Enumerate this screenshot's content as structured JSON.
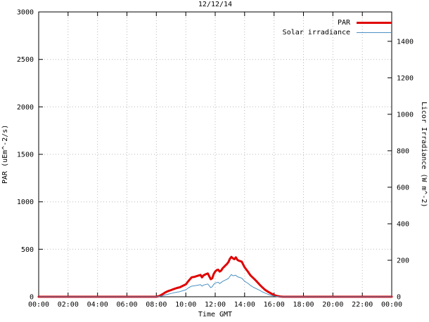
{
  "chart_data": {
    "type": "line",
    "title": "12/12/14",
    "xlabel": "Time GMT",
    "ylabel": "PAR (uEm^-2/s)",
    "y2label": "Licor Irradiance (W m^-2)",
    "xlim": [
      0,
      24
    ],
    "ylim": [
      0,
      3000
    ],
    "y2lim": [
      0,
      1561
    ],
    "grid": true,
    "legend_position": "top-right",
    "xticks": [
      {
        "v": 0,
        "label": "00:00"
      },
      {
        "v": 2,
        "label": "02:00"
      },
      {
        "v": 4,
        "label": "04:00"
      },
      {
        "v": 6,
        "label": "06:00"
      },
      {
        "v": 8,
        "label": "08:00"
      },
      {
        "v": 10,
        "label": "10:00"
      },
      {
        "v": 12,
        "label": "12:00"
      },
      {
        "v": 14,
        "label": "14:00"
      },
      {
        "v": 16,
        "label": "16:00"
      },
      {
        "v": 18,
        "label": "18:00"
      },
      {
        "v": 20,
        "label": "20:00"
      },
      {
        "v": 22,
        "label": "22:00"
      },
      {
        "v": 24,
        "label": "00:00"
      }
    ],
    "yticks": [
      {
        "v": 0,
        "label": "0"
      },
      {
        "v": 500,
        "label": "500"
      },
      {
        "v": 1000,
        "label": "1000"
      },
      {
        "v": 1500,
        "label": "1500"
      },
      {
        "v": 2000,
        "label": "2000"
      },
      {
        "v": 2500,
        "label": "2500"
      },
      {
        "v": 3000,
        "label": "3000"
      }
    ],
    "y2ticks": [
      {
        "v": 0,
        "label": "0"
      },
      {
        "v": 200,
        "label": "200"
      },
      {
        "v": 400,
        "label": "400"
      },
      {
        "v": 600,
        "label": "600"
      },
      {
        "v": 800,
        "label": "800"
      },
      {
        "v": 1000,
        "label": "1000"
      },
      {
        "v": 1200,
        "label": "1200"
      },
      {
        "v": 1400,
        "label": "1400"
      }
    ],
    "series": [
      {
        "name": "PAR",
        "axis": "left",
        "color": "#e00000",
        "width": 3,
        "points": [
          [
            0,
            0
          ],
          [
            1,
            0
          ],
          [
            2,
            0
          ],
          [
            3,
            0
          ],
          [
            4,
            0
          ],
          [
            5,
            0
          ],
          [
            6,
            0
          ],
          [
            7,
            0
          ],
          [
            8,
            0
          ],
          [
            8.2,
            8
          ],
          [
            8.4,
            25
          ],
          [
            8.6,
            45
          ],
          [
            8.8,
            60
          ],
          [
            9,
            70
          ],
          [
            9.2,
            82
          ],
          [
            9.4,
            92
          ],
          [
            9.6,
            100
          ],
          [
            9.8,
            115
          ],
          [
            10,
            130
          ],
          [
            10.2,
            170
          ],
          [
            10.4,
            205
          ],
          [
            10.6,
            210
          ],
          [
            10.8,
            220
          ],
          [
            11,
            230
          ],
          [
            11.1,
            205
          ],
          [
            11.2,
            225
          ],
          [
            11.4,
            240
          ],
          [
            11.5,
            245
          ],
          [
            11.6,
            215
          ],
          [
            11.7,
            185
          ],
          [
            11.8,
            195
          ],
          [
            11.9,
            240
          ],
          [
            12,
            265
          ],
          [
            12.1,
            280
          ],
          [
            12.2,
            285
          ],
          [
            12.3,
            265
          ],
          [
            12.4,
            275
          ],
          [
            12.5,
            300
          ],
          [
            12.6,
            315
          ],
          [
            12.7,
            330
          ],
          [
            12.8,
            345
          ],
          [
            12.9,
            365
          ],
          [
            13,
            400
          ],
          [
            13.1,
            420
          ],
          [
            13.2,
            405
          ],
          [
            13.3,
            395
          ],
          [
            13.4,
            415
          ],
          [
            13.5,
            390
          ],
          [
            13.6,
            380
          ],
          [
            13.8,
            370
          ],
          [
            14,
            310
          ],
          [
            14.2,
            270
          ],
          [
            14.4,
            225
          ],
          [
            14.6,
            195
          ],
          [
            14.8,
            165
          ],
          [
            15,
            130
          ],
          [
            15.2,
            100
          ],
          [
            15.4,
            72
          ],
          [
            15.6,
            52
          ],
          [
            15.8,
            35
          ],
          [
            16,
            18
          ],
          [
            16.2,
            8
          ],
          [
            16.4,
            3
          ],
          [
            16.6,
            0
          ],
          [
            17,
            0
          ],
          [
            18,
            0
          ],
          [
            19,
            0
          ],
          [
            20,
            0
          ],
          [
            21,
            0
          ],
          [
            22,
            0
          ],
          [
            23,
            0
          ],
          [
            24,
            0
          ]
        ]
      },
      {
        "name": "Solar irradiance",
        "axis": "right",
        "color": "#4a90c2",
        "width": 1,
        "points": [
          [
            0,
            0
          ],
          [
            1,
            0
          ],
          [
            2,
            0
          ],
          [
            3,
            0
          ],
          [
            4,
            0
          ],
          [
            5,
            0
          ],
          [
            6,
            0
          ],
          [
            7,
            0
          ],
          [
            8,
            0
          ],
          [
            8.4,
            5
          ],
          [
            8.6,
            10
          ],
          [
            8.8,
            14
          ],
          [
            9,
            18
          ],
          [
            9.2,
            22
          ],
          [
            9.4,
            25
          ],
          [
            9.6,
            28
          ],
          [
            9.8,
            33
          ],
          [
            10,
            38
          ],
          [
            10.2,
            50
          ],
          [
            10.4,
            58
          ],
          [
            10.6,
            60
          ],
          [
            10.8,
            63
          ],
          [
            11,
            66
          ],
          [
            11.1,
            58
          ],
          [
            11.2,
            64
          ],
          [
            11.4,
            68
          ],
          [
            11.5,
            70
          ],
          [
            11.6,
            60
          ],
          [
            11.7,
            50
          ],
          [
            11.8,
            55
          ],
          [
            11.9,
            68
          ],
          [
            12,
            75
          ],
          [
            12.2,
            80
          ],
          [
            12.3,
            72
          ],
          [
            12.5,
            84
          ],
          [
            12.7,
            92
          ],
          [
            12.9,
            100
          ],
          [
            13,
            112
          ],
          [
            13.1,
            122
          ],
          [
            13.2,
            115
          ],
          [
            13.4,
            118
          ],
          [
            13.5,
            110
          ],
          [
            13.8,
            102
          ],
          [
            14,
            85
          ],
          [
            14.2,
            75
          ],
          [
            14.4,
            62
          ],
          [
            14.6,
            52
          ],
          [
            14.8,
            44
          ],
          [
            15,
            36
          ],
          [
            15.2,
            27
          ],
          [
            15.4,
            20
          ],
          [
            15.6,
            13
          ],
          [
            15.8,
            8
          ],
          [
            16,
            4
          ],
          [
            16.2,
            2
          ],
          [
            16.5,
            0
          ],
          [
            17,
            0
          ],
          [
            18,
            0
          ],
          [
            19,
            0
          ],
          [
            20,
            0
          ],
          [
            21,
            0
          ],
          [
            22,
            0
          ],
          [
            23,
            0
          ],
          [
            24,
            0
          ]
        ]
      }
    ]
  }
}
